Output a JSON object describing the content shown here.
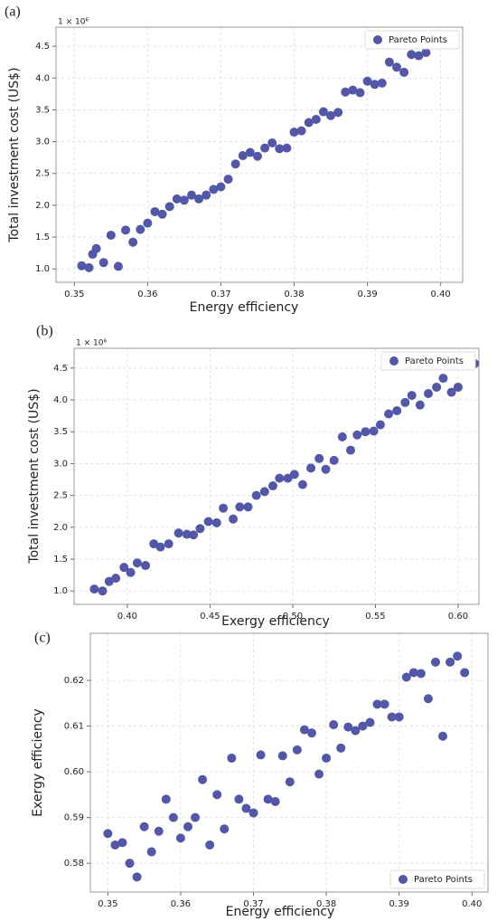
{
  "chart_data": [
    {
      "type": "scatter",
      "label": "(a)",
      "x_label": "Energy efficiency",
      "y_label": "Total investment cost (US$)",
      "offset_text": "1 × 10⁶",
      "xlim": [
        0.3475,
        0.403
      ],
      "ylim": [
        0.79,
        4.8
      ],
      "xticks": [
        0.35,
        0.36,
        0.37,
        0.38,
        0.39,
        {
          "value": 0.4,
          "label": "0.40"
        }
      ],
      "yticks": [
        {
          "value": 1,
          "label": "1.0"
        },
        1.5,
        {
          "value": 2,
          "label": "2.0"
        },
        2.5,
        {
          "value": 3,
          "label": "3.0"
        },
        3.5,
        {
          "value": 4,
          "label": "4.0"
        },
        4.5
      ],
      "grid": true,
      "legend": "upper right",
      "series": [
        {
          "name": "Pareto Points",
          "color": "#5257a8",
          "x": [
            0.351,
            0.352,
            0.3525,
            0.353,
            0.354,
            0.355,
            0.356,
            0.357,
            0.358,
            0.359,
            0.36,
            0.361,
            0.362,
            0.363,
            0.364,
            0.365,
            0.366,
            0.367,
            0.368,
            0.369,
            0.37,
            0.371,
            0.372,
            0.373,
            0.374,
            0.375,
            0.376,
            0.377,
            0.378,
            0.379,
            0.38,
            0.381,
            0.382,
            0.383,
            0.384,
            0.385,
            0.386,
            0.387,
            0.388,
            0.389,
            0.39,
            0.391,
            0.392,
            0.393,
            0.394,
            0.395,
            0.396,
            0.397,
            0.398
          ],
          "y": [
            1.05,
            1.02,
            1.23,
            1.32,
            1.1,
            1.53,
            1.04,
            1.61,
            1.42,
            1.62,
            1.72,
            1.9,
            1.86,
            1.98,
            2.1,
            2.08,
            2.16,
            2.1,
            2.16,
            2.25,
            2.29,
            2.41,
            2.65,
            2.78,
            2.83,
            2.77,
            2.9,
            2.98,
            2.89,
            2.9,
            3.15,
            3.17,
            3.3,
            3.35,
            3.47,
            3.41,
            3.46,
            3.78,
            3.81,
            3.77,
            3.95,
            3.9,
            3.92,
            4.25,
            4.17,
            4.09,
            4.37,
            4.35,
            4.4
          ]
        }
      ]
    },
    {
      "type": "scatter",
      "label": "(b)",
      "x_label": "Exergy efficiency",
      "y_label": "Total investment cost (US$)",
      "offset_text": "1 × 10⁶",
      "xlim": [
        0.3678,
        0.6126
      ],
      "ylim": [
        0.79,
        4.81
      ],
      "xticks": [
        {
          "value": 0.4,
          "label": "0.40"
        },
        0.45,
        {
          "value": 0.5,
          "label": "0.50"
        },
        0.55,
        {
          "value": 0.6,
          "label": "0.60"
        }
      ],
      "yticks": [
        {
          "value": 1,
          "label": "1.0"
        },
        1.5,
        {
          "value": 2,
          "label": "2.0"
        },
        2.5,
        {
          "value": 3,
          "label": "3.0"
        },
        3.5,
        {
          "value": 4,
          "label": "4.0"
        },
        4.5
      ],
      "grid": true,
      "legend": "upper right",
      "series": [
        {
          "name": "Pareto Points",
          "color": "#5257a8",
          "x": [
            0.38,
            0.385,
            0.389,
            0.393,
            0.398,
            0.402,
            0.406,
            0.411,
            0.416,
            0.42,
            0.425,
            0.431,
            0.436,
            0.44,
            0.444,
            0.449,
            0.454,
            0.458,
            0.464,
            0.468,
            0.473,
            0.478,
            0.483,
            0.488,
            0.492,
            0.497,
            0.501,
            0.506,
            0.511,
            0.516,
            0.52,
            0.525,
            0.53,
            0.535,
            0.539,
            0.544,
            0.549,
            0.553,
            0.558,
            0.563,
            0.568,
            0.572,
            0.577,
            0.582,
            0.587,
            0.591,
            0.596,
            0.6,
            0.61
          ],
          "y": [
            1.03,
            1.0,
            1.15,
            1.2,
            1.37,
            1.29,
            1.44,
            1.4,
            1.74,
            1.69,
            1.74,
            1.91,
            1.89,
            1.88,
            1.98,
            2.09,
            2.07,
            2.3,
            2.13,
            2.32,
            2.32,
            2.5,
            2.56,
            2.65,
            2.77,
            2.77,
            2.83,
            2.67,
            2.93,
            3.08,
            2.91,
            3.05,
            3.42,
            3.21,
            3.45,
            3.5,
            3.51,
            3.61,
            3.78,
            3.83,
            3.96,
            4.07,
            3.92,
            4.1,
            4.2,
            4.34,
            4.12,
            4.2,
            4.57
          ]
        }
      ]
    },
    {
      "type": "scatter",
      "label": "(c)",
      "x_label": "Energy efficiency",
      "y_label": "Exergy efficiency",
      "xlim": [
        0.3476,
        0.4022
      ],
      "ylim": [
        0.5737,
        0.6303
      ],
      "xticks": [
        0.35,
        0.36,
        0.37,
        0.38,
        0.39,
        {
          "value": 0.4,
          "label": "0.40"
        }
      ],
      "yticks": [
        0.58,
        0.59,
        {
          "value": 0.6,
          "label": "0.60"
        },
        0.61,
        0.62
      ],
      "grid": true,
      "legend": "lower right",
      "series": [
        {
          "name": "Pareto Points",
          "color": "#5257a8",
          "x": [
            0.35,
            0.351,
            0.352,
            0.353,
            0.354,
            0.355,
            0.356,
            0.357,
            0.358,
            0.359,
            0.36,
            0.361,
            0.362,
            0.363,
            0.364,
            0.365,
            0.366,
            0.367,
            0.368,
            0.369,
            0.37,
            0.371,
            0.372,
            0.373,
            0.374,
            0.375,
            0.376,
            0.377,
            0.378,
            0.379,
            0.38,
            0.381,
            0.382,
            0.383,
            0.384,
            0.385,
            0.386,
            0.387,
            0.388,
            0.389,
            0.39,
            0.391,
            0.392,
            0.393,
            0.394,
            0.395,
            0.396,
            0.397,
            0.398,
            0.399
          ],
          "y": [
            0.5865,
            0.584,
            0.5845,
            0.58,
            0.577,
            0.588,
            0.5825,
            0.587,
            0.594,
            0.59,
            0.5855,
            0.588,
            0.59,
            0.5983,
            0.584,
            0.595,
            0.5875,
            0.603,
            0.594,
            0.592,
            0.591,
            0.6037,
            0.594,
            0.5935,
            0.6035,
            0.5978,
            0.6048,
            0.6092,
            0.6085,
            0.5995,
            0.603,
            0.6103,
            0.6052,
            0.6098,
            0.609,
            0.61,
            0.6108,
            0.6148,
            0.6148,
            0.612,
            0.612,
            0.6207,
            0.6217,
            0.6215,
            0.616,
            0.624,
            0.6078,
            0.624,
            0.6253,
            0.6217
          ]
        }
      ]
    }
  ]
}
